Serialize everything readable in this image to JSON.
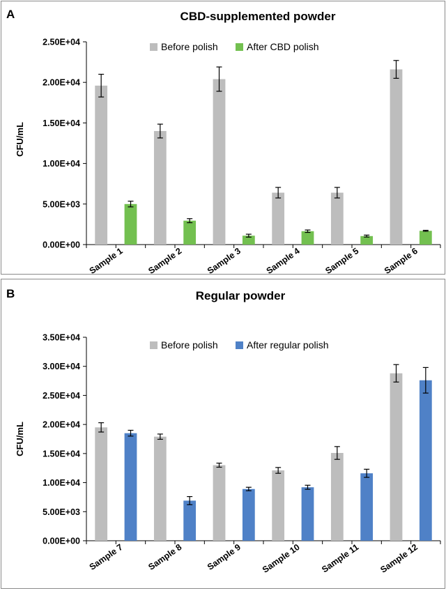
{
  "chart_data": [
    {
      "panel_label": "A",
      "type": "bar",
      "title": "CBD-supplemented powder",
      "xlabel": "",
      "ylabel": "CFU/mL",
      "ylim": [
        0,
        25000
      ],
      "y_ticks": [
        "0.00E+00",
        "5.00E+03",
        "1.00E+04",
        "1.50E+04",
        "2.00E+04",
        "2.50E+04"
      ],
      "y_tick_values": [
        0,
        5000,
        10000,
        15000,
        20000,
        25000
      ],
      "categories": [
        "Sample 1",
        "Sample 2",
        "Sample 3",
        "Sample 4",
        "Sample 5",
        "Sample 6"
      ],
      "legend_position": "top",
      "grid": false,
      "bars": [
        {
          "category": "Sample 1",
          "series": "Before polish",
          "value": 19600,
          "error": 1400
        },
        {
          "category": "Sample 1",
          "series": "After CBD polish",
          "value": 5000,
          "error": 350
        },
        {
          "category": "Sample 2",
          "series": "Before polish",
          "value": 14000,
          "error": 850
        },
        {
          "category": "Sample 2",
          "series": "After CBD polish",
          "value": 2950,
          "error": 250
        },
        {
          "category": "Sample 3",
          "series": "Before polish",
          "value": 20400,
          "error": 1500
        },
        {
          "category": "Sample 4",
          "series": "After CBD polish",
          "value": 1100,
          "error": 180
        },
        {
          "category": "Sample 4",
          "series": "Before polish",
          "value": 6400,
          "error": 650
        },
        {
          "category": "Sample 5",
          "series": "After CBD polish",
          "value": 1650,
          "error": 150
        },
        {
          "category": "Sample 5",
          "series": "Before polish",
          "value": 6400,
          "error": 650
        },
        {
          "category": "Sample 6",
          "series": "After CBD polish",
          "value": 1050,
          "error": 120
        },
        {
          "category": "Sample 6",
          "series": "Before polish",
          "value": 21600,
          "error": 1100
        },
        {
          "category": "Sample 6",
          "series": "After CBD polish",
          "value": 1700,
          "error": 60
        }
      ],
      "series": [
        {
          "name": "Before polish",
          "color": "#bdbdbd"
        },
        {
          "name": "After CBD polish",
          "color": "#73c050"
        }
      ]
    },
    {
      "panel_label": "B",
      "type": "bar",
      "title": "Regular powder",
      "xlabel": "",
      "ylabel": "CFU/mL",
      "ylim": [
        0,
        35000
      ],
      "y_ticks": [
        "0.00E+00",
        "5.00E+03",
        "1.00E+04",
        "1.50E+04",
        "2.00E+04",
        "2.50E+04",
        "3.00E+04",
        "3.50E+04"
      ],
      "y_tick_values": [
        0,
        5000,
        10000,
        15000,
        20000,
        25000,
        30000,
        35000
      ],
      "categories": [
        "Sample 7",
        "Sample 8",
        "Sample 9",
        "Sample 10",
        "Sample 11",
        "Sample 12"
      ],
      "legend_position": "top",
      "grid": false,
      "bars": [
        {
          "category": "Sample 7",
          "series": "Before polish",
          "value": 19500,
          "error": 800
        },
        {
          "category": "Sample 7",
          "series": "After regular polish",
          "value": 18500,
          "error": 500
        },
        {
          "category": "Sample 8",
          "series": "Before polish",
          "value": 17900,
          "error": 450
        },
        {
          "category": "Sample 8",
          "series": "After regular polish",
          "value": 6900,
          "error": 700
        },
        {
          "category": "Sample 9",
          "series": "Before polish",
          "value": 13000,
          "error": 350
        },
        {
          "category": "Sample 9",
          "series": "After regular polish",
          "value": 8900,
          "error": 300
        },
        {
          "category": "Sample 10",
          "series": "Before polish",
          "value": 12100,
          "error": 500
        },
        {
          "category": "Sample 10",
          "series": "After regular polish",
          "value": 9200,
          "error": 350
        },
        {
          "category": "Sample 11",
          "series": "Before polish",
          "value": 15100,
          "error": 1100
        },
        {
          "category": "Sample 11",
          "series": "After regular polish",
          "value": 11600,
          "error": 700
        },
        {
          "category": "Sample 12",
          "series": "Before polish",
          "value": 28800,
          "error": 1500
        },
        {
          "category": "Sample 12",
          "series": "After regular polish",
          "value": 27600,
          "error": 2200
        }
      ],
      "series": [
        {
          "name": "Before polish",
          "color": "#bdbdbd"
        },
        {
          "name": "After regular polish",
          "color": "#4f81c7"
        }
      ]
    }
  ]
}
